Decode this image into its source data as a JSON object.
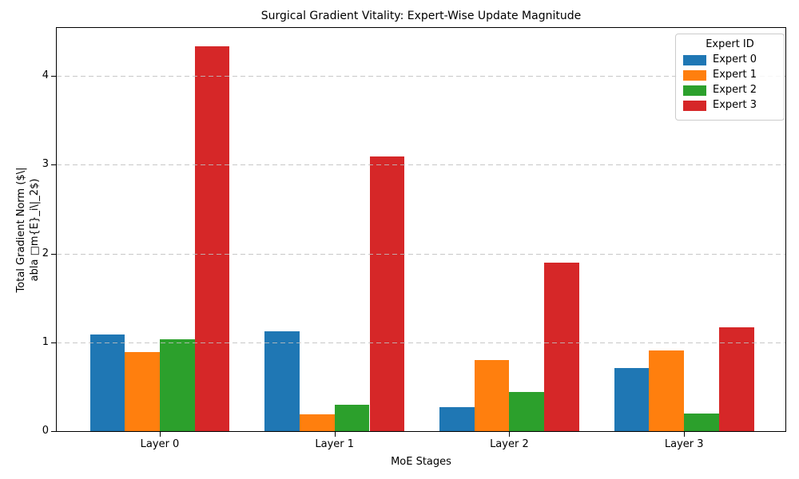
{
  "chart_data": {
    "type": "bar",
    "title": "Surgical Gradient Vitality: Expert-Wise Update Magnitude",
    "xlabel": "MoE Stages",
    "ylabel_line1": "Total Gradient Norm ($\\|",
    "ylabel_line2": "abla □m{E}_i\\|_2$)",
    "categories": [
      "Layer 0",
      "Layer 1",
      "Layer 2",
      "Layer 3"
    ],
    "series": [
      {
        "name": "Expert 0",
        "color": "#1f77b4",
        "values": [
          1.09,
          1.12,
          0.27,
          0.71
        ]
      },
      {
        "name": "Expert 1",
        "color": "#ff7f0e",
        "values": [
          0.89,
          0.19,
          0.8,
          0.91
        ]
      },
      {
        "name": "Expert 2",
        "color": "#2ca02c",
        "values": [
          1.03,
          0.3,
          0.44,
          0.2
        ]
      },
      {
        "name": "Expert 3",
        "color": "#d62728",
        "values": [
          4.33,
          3.09,
          1.9,
          1.17
        ]
      }
    ],
    "yticks": [
      "0",
      "1",
      "2",
      "3",
      "4"
    ],
    "ylim": [
      0,
      4.54
    ],
    "grid": "horizontal-dashed",
    "grid_color": "#bebebe",
    "legend": {
      "title": "Expert ID",
      "position": "upper-right"
    }
  }
}
